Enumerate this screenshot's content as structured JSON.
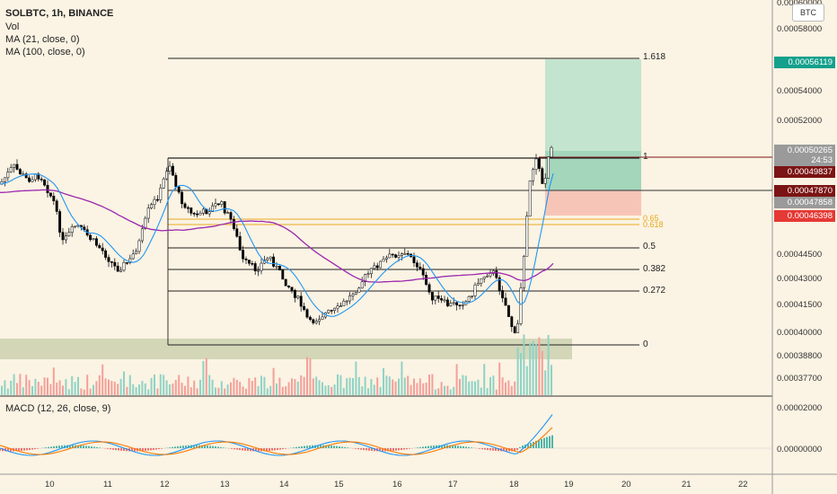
{
  "header": {
    "symbol": "SOLBTC, 1h, BINANCE",
    "indicators": [
      "Vol",
      "MA (21, close, 0)",
      "MA (100, close, 0)"
    ],
    "macd_label": "MACD (12, 26, close, 9)"
  },
  "currency_button": "BTC",
  "price_axis": {
    "ticks": [
      "0.00060000",
      "0.00058000",
      "0.00054000",
      "0.00052000",
      "0.00044500",
      "0.00043000",
      "0.00041500",
      "0.00040000",
      "0.00038800",
      "0.00037700"
    ],
    "macd_ticks": [
      "0.00002000",
      "0.00000000"
    ]
  },
  "price_tags": {
    "target": "0.00056119",
    "current": "0.00050265",
    "countdown": "24:53",
    "level_1": "0.00049837",
    "ma_fast": "0.00047870",
    "ma_gray": "0.00047858",
    "stop": "0.00046398"
  },
  "time_axis": [
    "10",
    "11",
    "12",
    "13",
    "14",
    "15",
    "16",
    "17",
    "18",
    "19",
    "20",
    "21",
    "22"
  ],
  "fib_levels": [
    {
      "label": "1.618",
      "color": "#222222"
    },
    {
      "label": "1",
      "color": "#222222"
    },
    {
      "label": "0.65",
      "color": "#e8a820"
    },
    {
      "label": "0.618",
      "color": "#e8a820"
    },
    {
      "label": "0.5",
      "color": "#222222"
    },
    {
      "label": "0.382",
      "color": "#222222"
    },
    {
      "label": "0.272",
      "color": "#222222"
    },
    {
      "label": "0",
      "color": "#222222"
    }
  ],
  "colors": {
    "background": "#fbf3e3",
    "bull": "#ffffff",
    "bear": "#000000",
    "ma21": "#2196f3",
    "ma100": "#9c27b0",
    "target_zone": "#a8d8c0",
    "stop_zone": "#f5b5a5",
    "tag_target": "#13a08c",
    "tag_current": "#9a9a9a",
    "tag_dark": "#7b1414",
    "tag_stop": "#e53935"
  }
}
